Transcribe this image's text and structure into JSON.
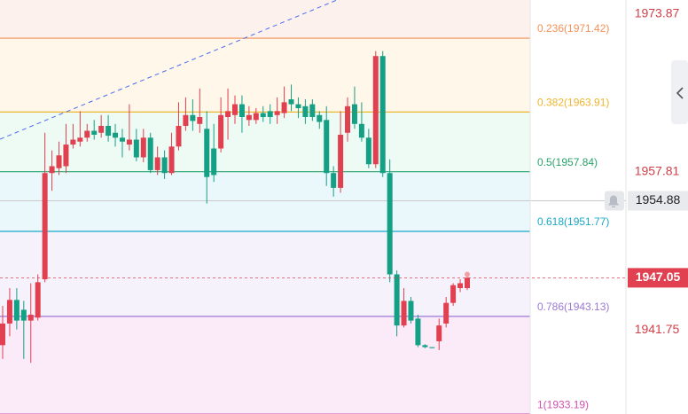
{
  "chart_data": {
    "type": "candlestick",
    "ylim": [
      1933.2,
      1975.3
    ],
    "yticks": [
      1973.87,
      1957.81,
      1941.75
    ],
    "up_color": "#e0404f",
    "down_color": "#14a085",
    "alert_price": 1954.88,
    "top_fill": "#fdf1ee",
    "fib_levels": [
      {
        "value": 1971.42,
        "label": "0.236(1971.42)",
        "color": "#f5915a",
        "fill": "#fff7ea"
      },
      {
        "value": 1963.91,
        "label": "0.382(1963.91)",
        "color": "#eeb52e",
        "fill": "#eefaf4"
      },
      {
        "value": 1957.84,
        "label": "0.5(1957.84)",
        "color": "#2aa36a",
        "fill": "#eaf7fb"
      },
      {
        "value": 1951.77,
        "label": "0.618(1951.77)",
        "color": "#1aa8c8",
        "fill": "#f5f2fc"
      },
      {
        "value": 1943.13,
        "label": "0.786(1943.13)",
        "color": "#9a78d8",
        "fill": "#fbebf9"
      },
      {
        "value": 1933.19,
        "label": "1(1933.19)",
        "color": "#d050b0",
        "fill": "#fbebf9"
      }
    ],
    "open": [
      1940.2,
      1942.4,
      1944.8,
      1943.8,
      1942.7,
      1943.0,
      1946.9,
      1957.7,
      1958.2,
      1958.4,
      1960.6,
      1960.9,
      1961.3,
      1962.0,
      1961.8,
      1962.5,
      1961.8,
      1961.3,
      1960.6,
      1961.1,
      1959.3,
      1961.3,
      1958.0,
      1959.3,
      1957.7,
      1960.4,
      1962.5,
      1963.6,
      1962.7,
      1962.2,
      1960.2,
      1960.2,
      1963.4,
      1963.6,
      1964.7,
      1963.1,
      1963.1,
      1963.8,
      1964.0,
      1963.6,
      1963.8,
      1965.2,
      1964.7,
      1964.5,
      1964.7,
      1963.6,
      1963.1,
      1957.7,
      1956.2,
      1961.8,
      1964.7,
      1962.7,
      1961.3,
      1958.6,
      1969.6,
      1957.7,
      1947.4,
      1942.2,
      1944.7,
      1942.9,
      1940.2,
      1940.0,
      1940.6,
      1942.4,
      1944.5,
      1946.0,
      1946.0
    ],
    "high": [
      1944.2,
      1946.0,
      1946.0,
      1944.7,
      1946.5,
      1947.4,
      1961.8,
      1960.0,
      1960.9,
      1962.7,
      1962.7,
      1964.0,
      1962.7,
      1963.1,
      1963.6,
      1963.6,
      1962.7,
      1962.2,
      1964.7,
      1962.2,
      1962.2,
      1961.8,
      1960.4,
      1960.0,
      1961.8,
      1964.9,
      1965.4,
      1965.2,
      1966.3,
      1964.0,
      1962.7,
      1965.4,
      1966.3,
      1965.6,
      1965.6,
      1964.5,
      1964.3,
      1964.5,
      1964.7,
      1965.4,
      1966.5,
      1966.7,
      1965.4,
      1965.2,
      1965.2,
      1964.0,
      1964.5,
      1958.4,
      1964.0,
      1965.4,
      1966.5,
      1964.9,
      1962.2,
      1970.1,
      1970.1,
      1959.1,
      1947.8,
      1946.0,
      1945.1,
      1943.3,
      1940.3,
      1940.0,
      1942.9,
      1945.1,
      1946.5,
      1946.9,
      1947.4
    ],
    "low": [
      1938.8,
      1941.1,
      1941.8,
      1938.8,
      1938.4,
      1942.7,
      1946.6,
      1955.9,
      1957.5,
      1957.7,
      1960.2,
      1960.4,
      1960.9,
      1961.1,
      1961.3,
      1960.9,
      1960.4,
      1959.3,
      1960.0,
      1958.9,
      1958.8,
      1957.7,
      1957.5,
      1957.1,
      1957.5,
      1960.0,
      1962.0,
      1962.0,
      1961.8,
      1954.6,
      1956.8,
      1959.8,
      1961.1,
      1962.7,
      1961.8,
      1962.5,
      1962.7,
      1962.9,
      1962.7,
      1962.7,
      1963.3,
      1964.0,
      1963.3,
      1962.7,
      1963.0,
      1962.2,
      1956.4,
      1955.3,
      1955.7,
      1960.9,
      1962.2,
      1960.9,
      1958.2,
      1958.2,
      1957.3,
      1946.6,
      1941.1,
      1942.0,
      1942.4,
      1940.0,
      1939.9,
      1939.9,
      1939.7,
      1942.0,
      1944.2,
      1945.6,
      1945.8
    ],
    "close": [
      1942.4,
      1944.8,
      1942.7,
      1942.7,
      1943.3,
      1946.6,
      1957.7,
      1958.4,
      1959.5,
      1960.6,
      1961.1,
      1961.3,
      1962.0,
      1961.6,
      1962.5,
      1961.5,
      1961.3,
      1960.9,
      1961.1,
      1959.3,
      1961.3,
      1958.0,
      1959.3,
      1957.7,
      1960.4,
      1962.5,
      1963.6,
      1963.0,
      1963.4,
      1957.3,
      1957.5,
      1963.6,
      1964.0,
      1964.7,
      1963.4,
      1963.6,
      1963.8,
      1963.4,
      1963.4,
      1964.0,
      1964.9,
      1964.7,
      1964.3,
      1963.4,
      1963.4,
      1962.9,
      1957.7,
      1956.2,
      1961.6,
      1964.5,
      1962.7,
      1961.3,
      1958.6,
      1969.6,
      1957.7,
      1947.4,
      1942.2,
      1944.7,
      1942.7,
      1940.2,
      1940.0,
      1939.9,
      1942.2,
      1944.5,
      1946.3,
      1946.5,
      1947.05
    ]
  }
}
